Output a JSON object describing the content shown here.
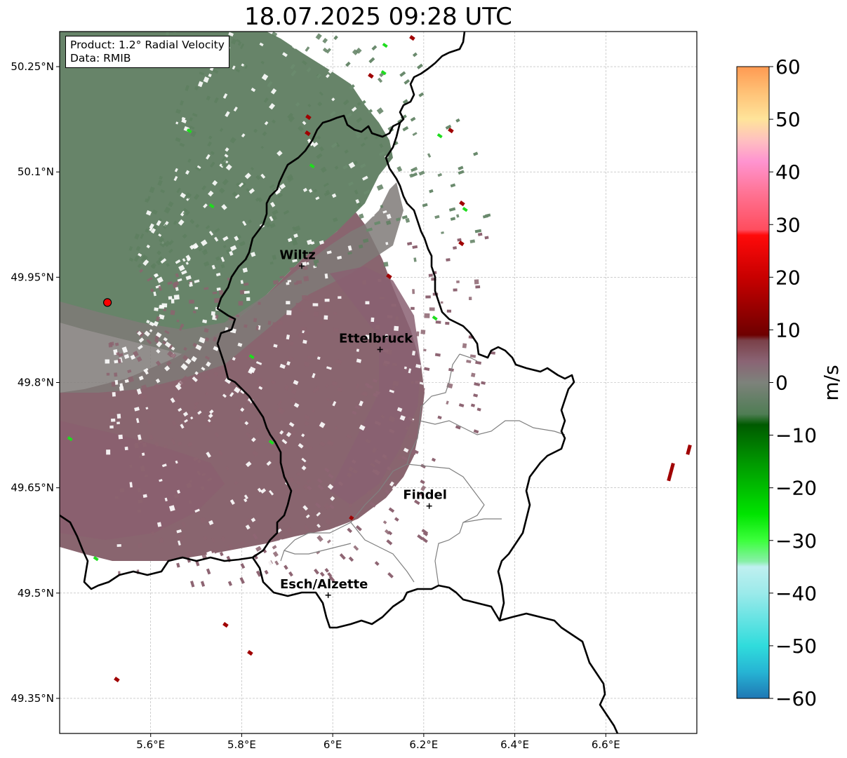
{
  "title": "18.07.2025 09:28 UTC",
  "info": {
    "product": "Product: 1.2° Radial Velocity",
    "data": "Data: RMIB"
  },
  "map": {
    "lon_range": [
      5.4,
      6.8
    ],
    "lat_range": [
      49.3,
      50.3
    ],
    "grid": true,
    "x_ticks": [
      {
        "lon": 5.6,
        "label": "5.6°E"
      },
      {
        "lon": 5.8,
        "label": "5.8°E"
      },
      {
        "lon": 6.0,
        "label": "6°E"
      },
      {
        "lon": 6.2,
        "label": "6.2°E"
      },
      {
        "lon": 6.4,
        "label": "6.4°E"
      },
      {
        "lon": 6.6,
        "label": "6.6°E"
      }
    ],
    "y_ticks": [
      {
        "lat": 50.25,
        "label": "50.25°N"
      },
      {
        "lat": 50.1,
        "label": "50.1°N"
      },
      {
        "lat": 49.95,
        "label": "49.95°N"
      },
      {
        "lat": 49.8,
        "label": "49.8°N"
      },
      {
        "lat": 49.65,
        "label": "49.65°N"
      },
      {
        "lat": 49.5,
        "label": "49.5°N"
      },
      {
        "lat": 49.35,
        "label": "49.35°N"
      }
    ],
    "radar_site": {
      "lon": 5.505,
      "lat": 49.914,
      "color": "#ff0000"
    },
    "cities": [
      {
        "name": "Wiltz",
        "lon": 5.932,
        "lat": 49.966
      },
      {
        "name": "Ettelbruck",
        "lon": 6.104,
        "lat": 49.847
      },
      {
        "name": "Findel",
        "lon": 6.212,
        "lat": 49.624
      },
      {
        "name": "Esch/Alzette",
        "lon": 5.99,
        "lat": 49.497
      }
    ]
  },
  "colorbar": {
    "label": "m/s",
    "min": -60,
    "max": 60,
    "ticks": [
      {
        "value": 60,
        "label": "60"
      },
      {
        "value": 50,
        "label": "50"
      },
      {
        "value": 40,
        "label": "40"
      },
      {
        "value": 30,
        "label": "30"
      },
      {
        "value": 20,
        "label": "20"
      },
      {
        "value": 10,
        "label": "10"
      },
      {
        "value": 0,
        "label": "0"
      },
      {
        "value": -10,
        "label": "−10"
      },
      {
        "value": -20,
        "label": "−20"
      },
      {
        "value": -30,
        "label": "−30"
      },
      {
        "value": -40,
        "label": "−40"
      },
      {
        "value": -50,
        "label": "−50"
      },
      {
        "value": -60,
        "label": "−60"
      }
    ],
    "stops": [
      {
        "value": -60,
        "color": "#1f77b4"
      },
      {
        "value": -55,
        "color": "#26b4d4"
      },
      {
        "value": -50,
        "color": "#30dcdc"
      },
      {
        "value": -40,
        "color": "#9beaea"
      },
      {
        "value": -35,
        "color": "#bff0f0"
      },
      {
        "value": -34,
        "color": "#88f0a8"
      },
      {
        "value": -30,
        "color": "#3cff3c"
      },
      {
        "value": -25,
        "color": "#00e400"
      },
      {
        "value": -15,
        "color": "#009600"
      },
      {
        "value": -8,
        "color": "#005a00"
      },
      {
        "value": -6,
        "color": "#4f7d54"
      },
      {
        "value": 0,
        "color": "#7d827b"
      },
      {
        "value": 4,
        "color": "#8a6474"
      },
      {
        "value": 8,
        "color": "#7a4048"
      },
      {
        "value": 9,
        "color": "#6e0000"
      },
      {
        "value": 20,
        "color": "#c80000"
      },
      {
        "value": 28,
        "color": "#ff0a0a"
      },
      {
        "value": 29,
        "color": "#ff4d5e"
      },
      {
        "value": 36,
        "color": "#ff7394"
      },
      {
        "value": 42,
        "color": "#ff94d0"
      },
      {
        "value": 46,
        "color": "#ffc0c0"
      },
      {
        "value": 50,
        "color": "#ffe49a"
      },
      {
        "value": 55,
        "color": "#ffc277"
      },
      {
        "value": 60,
        "color": "#ff9a52"
      }
    ]
  },
  "colors": {
    "inbound_green": "#5f8062",
    "outbound_mauve": "#8a6470",
    "neutral_grey": "#84857d",
    "border": "#000000",
    "canton_line": "#808080"
  }
}
